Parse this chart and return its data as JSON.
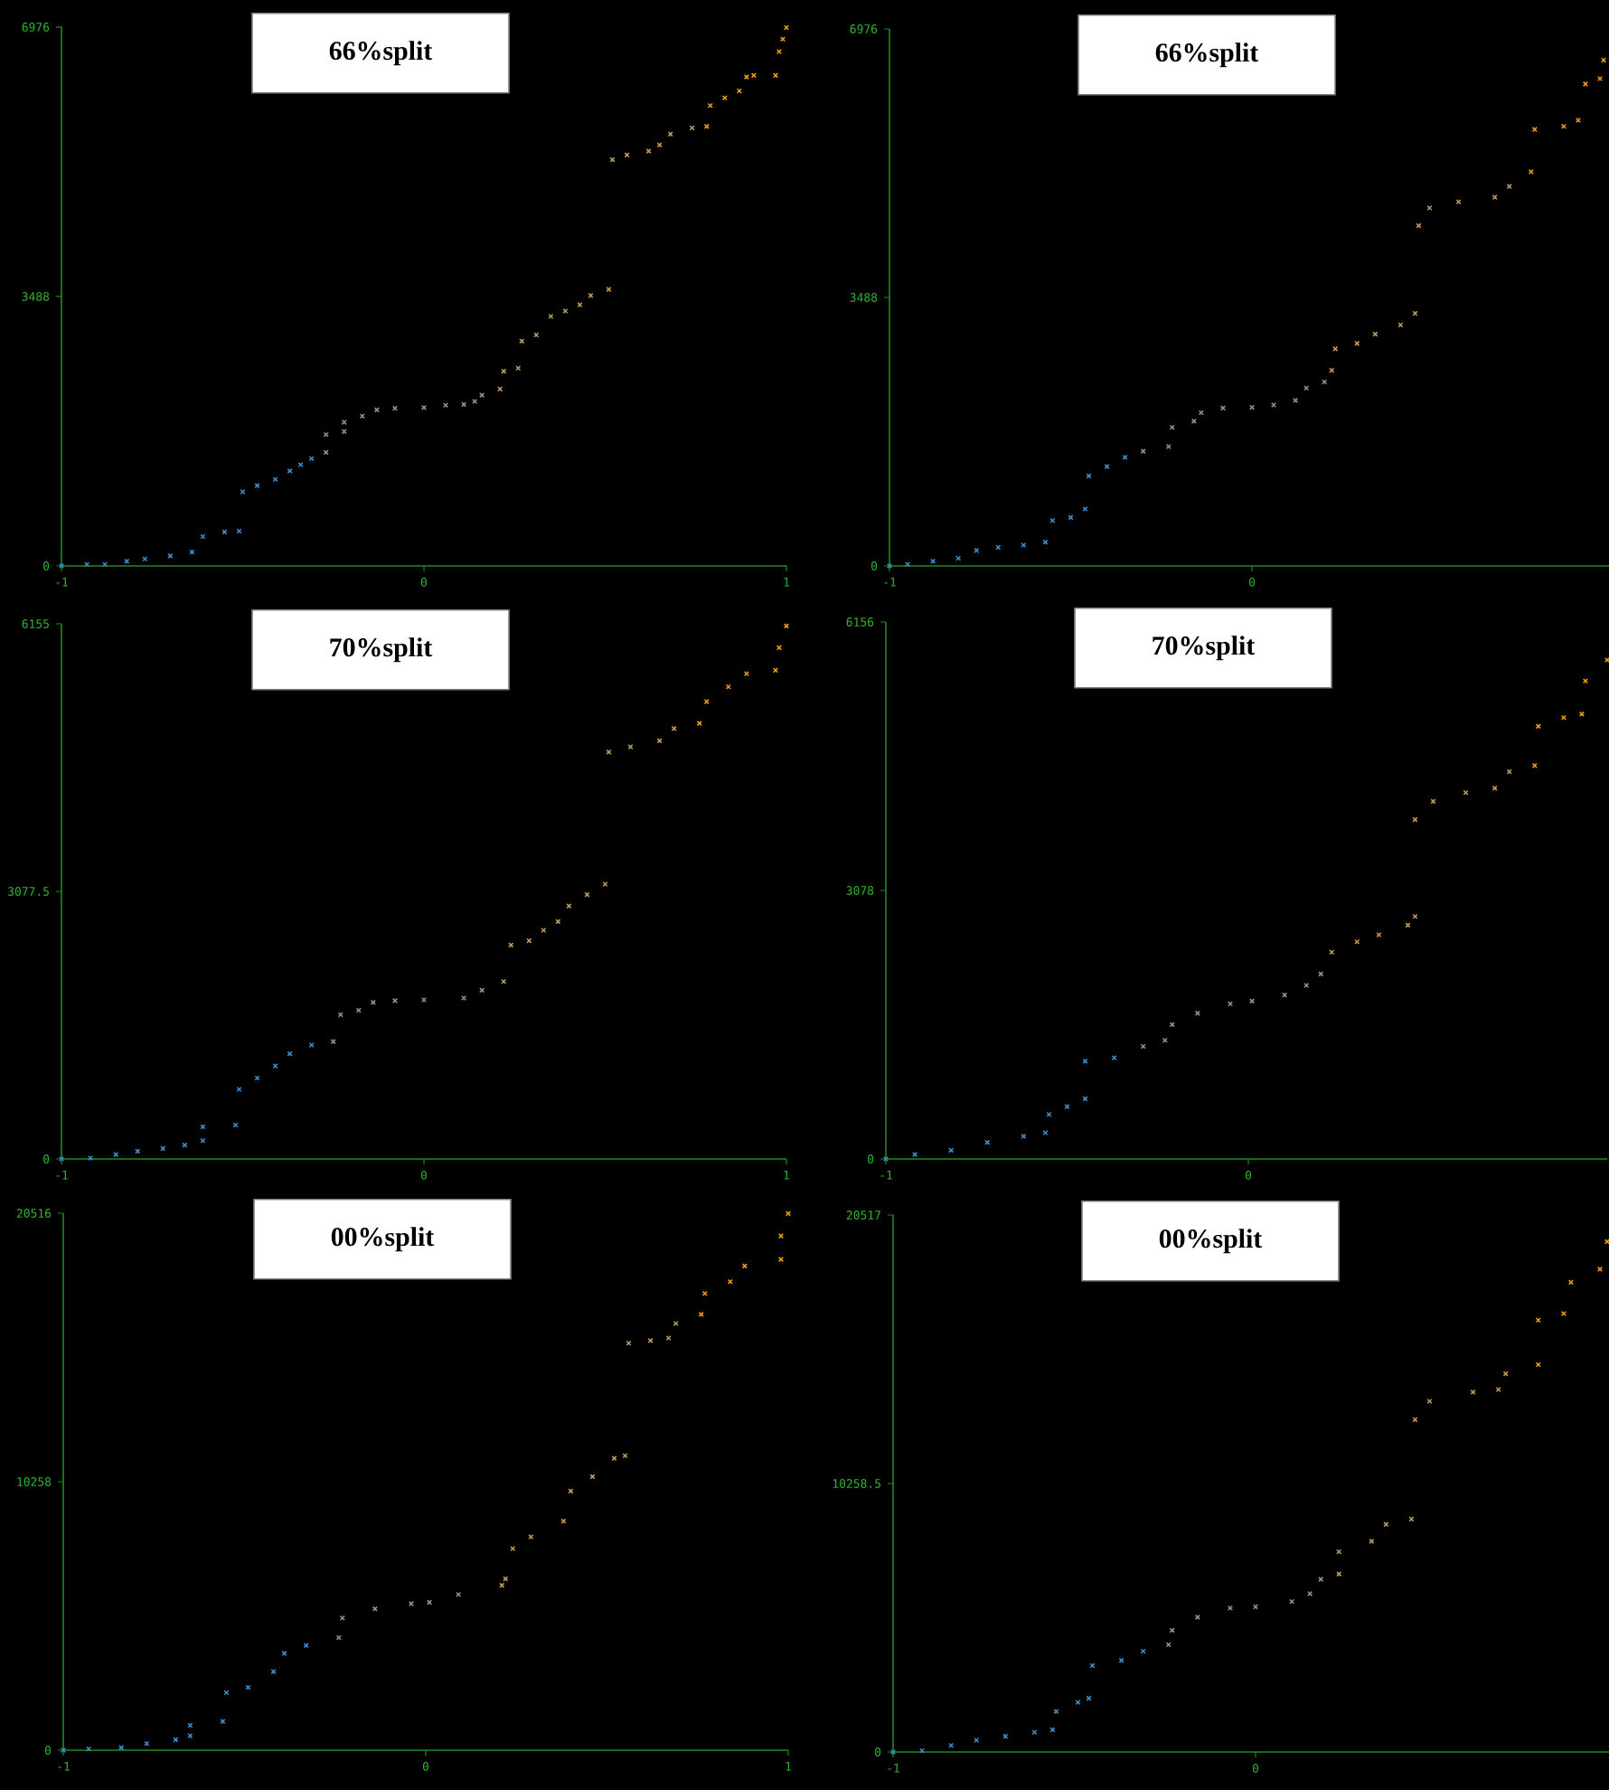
{
  "chart_data": [
    {
      "type": "scatter",
      "title": "66%split",
      "xlim": [
        -1,
        1
      ],
      "ylim": [
        0,
        6976
      ],
      "xticks": [
        -1,
        0,
        1
      ],
      "yticks": [
        0,
        3488,
        6976
      ],
      "marker": "cross",
      "series": [
        {
          "color": "#3a8fd0",
          "x": [
            -1,
            -0.93,
            -0.88,
            -0.82,
            -0.77,
            -0.7,
            -0.64,
            -0.61,
            -0.55,
            -0.51,
            -0.5,
            -0.46,
            -0.41,
            -0.37,
            -0.34,
            -0.31
          ],
          "values": [
            0,
            20,
            20,
            60,
            90,
            130,
            180,
            380,
            440,
            450,
            960,
            1040,
            1120,
            1230,
            1310,
            1390
          ]
        },
        {
          "color": "#7f9a98",
          "x": [
            -0.27,
            -0.27,
            -0.22,
            -0.22,
            -0.17,
            -0.13,
            -0.08,
            0.0,
            0.06,
            0.11,
            0.14,
            0.16
          ],
          "values": [
            1470,
            1700,
            1740,
            1860,
            1940,
            2020,
            2040,
            2050,
            2080,
            2090,
            2130,
            2210
          ]
        },
        {
          "color": "#c09a55",
          "x": [
            0.21,
            0.22,
            0.26,
            0.27,
            0.31,
            0.35,
            0.39,
            0.43,
            0.46,
            0.51,
            0.52,
            0.56,
            0.62,
            0.65,
            0.68,
            0.74
          ],
          "values": [
            2290,
            2520,
            2560,
            2910,
            2990,
            3230,
            3300,
            3380,
            3500,
            3580,
            5260,
            5320,
            5370,
            5450,
            5590,
            5670
          ]
        },
        {
          "color": "#f59a1a",
          "x": [
            0.78,
            0.79,
            0.83,
            0.87,
            0.89,
            0.91,
            0.97,
            0.98,
            0.99,
            1.0
          ],
          "values": [
            5690,
            5960,
            6060,
            6150,
            6330,
            6350,
            6350,
            6660,
            6820,
            6970
          ]
        }
      ]
    },
    {
      "type": "scatter",
      "title": "66%split",
      "xlim": [
        -1,
        0.99
      ],
      "ylim": [
        0,
        6976
      ],
      "xticks": [
        -1,
        0
      ],
      "yticks": [
        0,
        3488,
        6976
      ],
      "marker": "cross",
      "series": [
        {
          "color": "#3a8fd0",
          "x": [
            -1,
            -0.95,
            -0.88,
            -0.81,
            -0.76,
            -0.7,
            -0.63,
            -0.57,
            -0.55,
            -0.5,
            -0.46,
            -0.45,
            -0.4,
            -0.35
          ],
          "values": [
            0,
            20,
            60,
            100,
            200,
            240,
            270,
            310,
            590,
            630,
            740,
            1170,
            1290,
            1410
          ]
        },
        {
          "color": "#7f9a98",
          "x": [
            -0.3,
            -0.23,
            -0.22,
            -0.16,
            -0.14,
            -0.08,
            0.0,
            0.06,
            0.12,
            0.15,
            0.2
          ],
          "values": [
            1490,
            1550,
            1800,
            1880,
            1990,
            2050,
            2060,
            2090,
            2150,
            2310,
            2390
          ]
        },
        {
          "color": "#c09a55",
          "x": [
            0.22,
            0.23,
            0.29,
            0.34,
            0.41,
            0.45,
            0.46,
            0.49,
            0.57,
            0.67,
            0.71
          ],
          "values": [
            2540,
            2820,
            2890,
            3010,
            3130,
            3280,
            4420,
            4650,
            4730,
            4790,
            4930
          ]
        },
        {
          "color": "#f59a1a",
          "x": [
            0.77,
            0.78,
            0.86,
            0.9,
            0.92,
            0.96,
            0.97
          ],
          "values": [
            5120,
            5670,
            5710,
            5790,
            6260,
            6330,
            6570
          ]
        }
      ]
    },
    {
      "type": "scatter",
      "title": "70%split",
      "xlim": [
        -1,
        1
      ],
      "ylim": [
        0,
        6155
      ],
      "xticks": [
        -1,
        0,
        1
      ],
      "yticks": [
        0,
        3077.5,
        6155
      ],
      "marker": "cross",
      "series": [
        {
          "color": "#3a8fd0",
          "x": [
            -1,
            -0.92,
            -0.85,
            -0.79,
            -0.72,
            -0.66,
            -0.61,
            -0.61,
            -0.52,
            -0.51,
            -0.46,
            -0.41,
            -0.37,
            -0.31
          ],
          "values": [
            0,
            10,
            50,
            90,
            120,
            160,
            210,
            370,
            390,
            800,
            930,
            1070,
            1210,
            1310
          ]
        },
        {
          "color": "#7f9a98",
          "x": [
            -0.25,
            -0.23,
            -0.18,
            -0.14,
            -0.08,
            0.0,
            0.11,
            0.16
          ],
          "values": [
            1350,
            1660,
            1710,
            1800,
            1820,
            1830,
            1850,
            1940
          ]
        },
        {
          "color": "#c09a55",
          "x": [
            0.22,
            0.24,
            0.29,
            0.33,
            0.37,
            0.4,
            0.45,
            0.5,
            0.51,
            0.57,
            0.65,
            0.69
          ],
          "values": [
            2040,
            2460,
            2510,
            2630,
            2730,
            2910,
            3040,
            3160,
            4680,
            4740,
            4810,
            4950
          ]
        },
        {
          "color": "#f59a1a",
          "x": [
            0.76,
            0.78,
            0.84,
            0.89,
            0.97,
            0.98,
            1.0
          ],
          "values": [
            5010,
            5260,
            5430,
            5580,
            5620,
            5880,
            6130
          ]
        }
      ]
    },
    {
      "type": "scatter",
      "title": "70%split",
      "xlim": [
        -1,
        0.99
      ],
      "ylim": [
        0,
        6156
      ],
      "xticks": [
        -1,
        0
      ],
      "yticks": [
        0,
        3078,
        6156
      ],
      "marker": "cross",
      "series": [
        {
          "color": "#3a8fd0",
          "x": [
            -1,
            -0.92,
            -0.82,
            -0.72,
            -0.62,
            -0.56,
            -0.55,
            -0.5,
            -0.45,
            -0.45,
            -0.37
          ],
          "values": [
            0,
            50,
            100,
            190,
            260,
            300,
            510,
            600,
            690,
            1120,
            1160
          ]
        },
        {
          "color": "#7f9a98",
          "x": [
            -0.29,
            -0.23,
            -0.21,
            -0.14,
            -0.05,
            0.01,
            0.1,
            0.16,
            0.2
          ],
          "values": [
            1290,
            1360,
            1540,
            1670,
            1780,
            1810,
            1880,
            1990,
            2120
          ]
        },
        {
          "color": "#c09a55",
          "x": [
            0.23,
            0.3,
            0.36,
            0.44,
            0.46,
            0.46,
            0.51,
            0.6,
            0.68,
            0.72
          ],
          "values": [
            2370,
            2490,
            2570,
            2680,
            2780,
            3890,
            4100,
            4200,
            4250,
            4440
          ]
        },
        {
          "color": "#f59a1a",
          "x": [
            0.79,
            0.8,
            0.87,
            0.92,
            0.93,
            0.99
          ],
          "values": [
            4510,
            4960,
            5060,
            5100,
            5480,
            5720
          ]
        }
      ]
    },
    {
      "type": "scatter",
      "title": "00%split",
      "xlim": [
        -1,
        1
      ],
      "ylim": [
        0,
        20516
      ],
      "xticks": [
        -1,
        0,
        1
      ],
      "yticks": [
        0,
        10258,
        20516
      ],
      "marker": "cross",
      "series": [
        {
          "color": "#3a8fd0",
          "x": [
            -1,
            -0.93,
            -0.84,
            -0.77,
            -0.69,
            -0.65,
            -0.65,
            -0.56,
            -0.55,
            -0.49,
            -0.42,
            -0.39,
            -0.33
          ],
          "values": [
            0,
            50,
            100,
            250,
            400,
            550,
            950,
            1100,
            2200,
            2400,
            3000,
            3700,
            4000
          ]
        },
        {
          "color": "#7f9a98",
          "x": [
            -0.24,
            -0.23,
            -0.14,
            -0.04,
            0.01,
            0.09
          ],
          "values": [
            4300,
            5050,
            5400,
            5600,
            5650,
            5950
          ]
        },
        {
          "color": "#c09a55",
          "x": [
            0.21,
            0.22,
            0.24,
            0.29,
            0.38,
            0.4,
            0.46,
            0.52,
            0.55,
            0.56,
            0.62,
            0.67,
            0.69
          ],
          "values": [
            6300,
            6550,
            7700,
            8150,
            8750,
            9900,
            10450,
            11150,
            11250,
            15550,
            15650,
            15750,
            16300
          ]
        },
        {
          "color": "#f59a1a",
          "x": [
            0.76,
            0.77,
            0.84,
            0.88,
            0.98,
            0.98,
            1.0
          ],
          "values": [
            16650,
            17450,
            17900,
            18500,
            18750,
            19650,
            20500
          ]
        }
      ]
    },
    {
      "type": "scatter",
      "title": "00%split",
      "xlim": [
        -1,
        0.99
      ],
      "ylim": [
        0,
        20517
      ],
      "xticks": [
        -1,
        0
      ],
      "yticks": [
        0,
        10258.5,
        20517
      ],
      "marker": "cross",
      "series": [
        {
          "color": "#3a8fd0",
          "x": [
            -1,
            -0.92,
            -0.84,
            -0.77,
            -0.69,
            -0.61,
            -0.56,
            -0.55,
            -0.49,
            -0.46,
            -0.45,
            -0.37,
            -0.31
          ],
          "values": [
            0,
            50,
            250,
            450,
            600,
            750,
            850,
            1550,
            1900,
            2050,
            3300,
            3500,
            3850
          ]
        },
        {
          "color": "#7f9a98",
          "x": [
            -0.24,
            -0.23,
            -0.16,
            -0.07,
            0.0,
            0.1,
            0.15,
            0.18
          ],
          "values": [
            4100,
            4650,
            5150,
            5500,
            5550,
            5750,
            6050,
            6600
          ]
        },
        {
          "color": "#c09a55",
          "x": [
            0.23,
            0.23,
            0.32,
            0.36,
            0.43,
            0.44,
            0.48,
            0.6,
            0.67,
            0.69
          ],
          "values": [
            6800,
            7650,
            8050,
            8700,
            8900,
            12700,
            13400,
            13750,
            13850,
            14450
          ]
        },
        {
          "color": "#f59a1a",
          "x": [
            0.78,
            0.78,
            0.85,
            0.87,
            0.95,
            0.97
          ],
          "values": [
            14800,
            16500,
            16750,
            17950,
            18450,
            19500
          ]
        }
      ]
    }
  ]
}
